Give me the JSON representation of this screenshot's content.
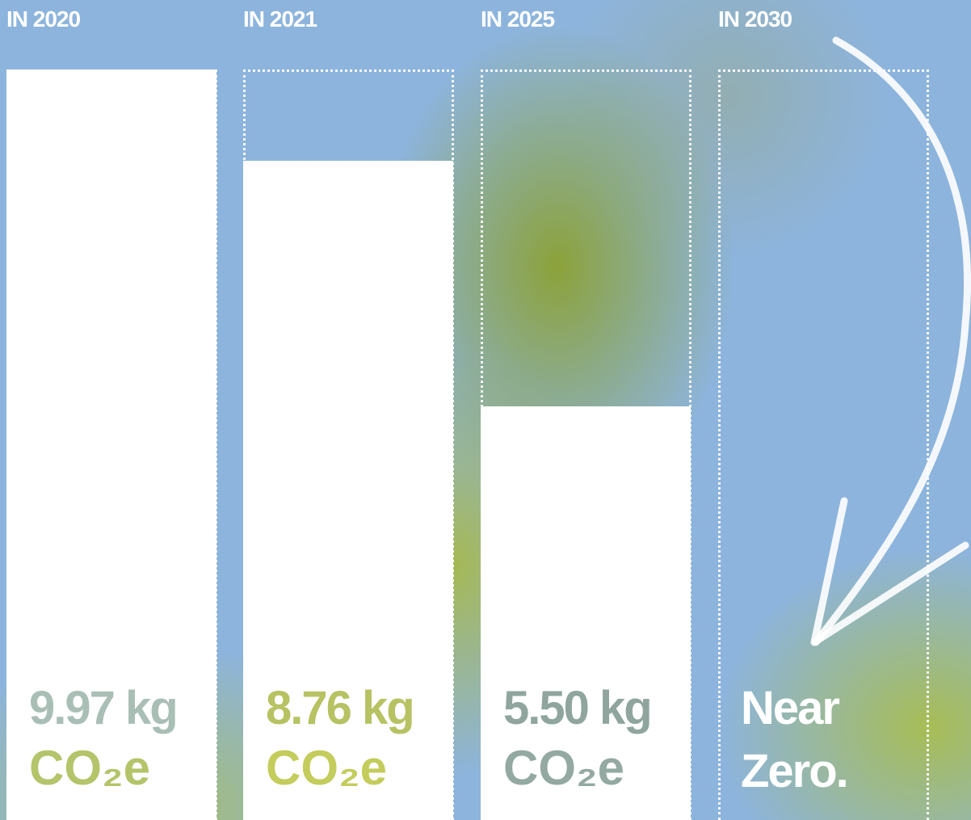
{
  "chart_data": {
    "type": "bar",
    "categories": [
      "IN 2020",
      "IN 2021",
      "IN 2025",
      "IN 2030"
    ],
    "values": [
      9.97,
      8.76,
      5.5,
      null
    ],
    "value_labels": [
      "9.97 kg",
      "8.76 kg",
      "5.50 kg",
      "Near Zero."
    ],
    "unit": "CO₂e",
    "color": "#ffffff"
  }
}
